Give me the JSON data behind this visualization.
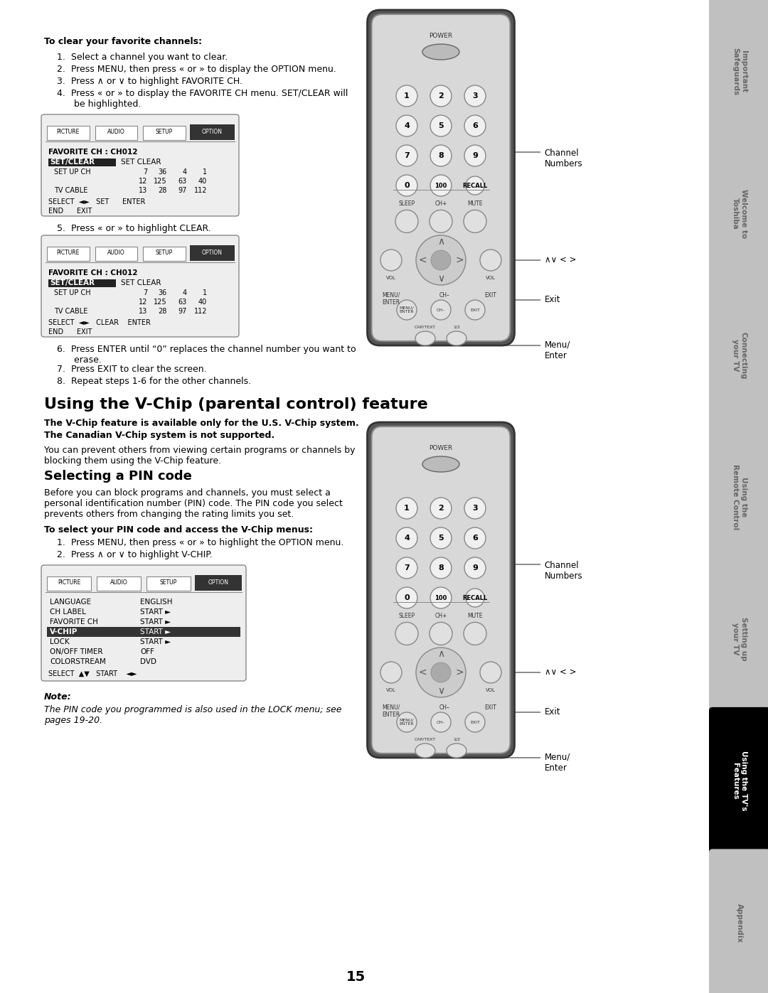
{
  "page_bg": "#ffffff",
  "page_number": "15",
  "tab_labels": [
    "Important\nSafeguards",
    "Welcome to\nToshiba",
    "Connecting\nyour TV",
    "Using the\nRemote Control",
    "Setting up\nyour TV",
    "Using the TV's\nFeatures",
    "Appendix"
  ],
  "tab_active_index": 5,
  "tab_bg_normal": "#c0c0c0",
  "tab_bg_active": "#000000",
  "tab_text_normal": "#666666",
  "tab_text_active": "#ffffff",
  "main_title": "Using the V-Chip (parental control) feature",
  "section_title": "Selecting a PIN code",
  "top_bold_title": "To clear your favorite channels:",
  "top_steps": [
    "Select a channel you want to clear.",
    "Press MENU, then press « or » to display the OPTION menu.",
    "Press ∧ or ∨ to highlight FAVORITE CH.",
    "Press « or » to display the FAVORITE CH menu. SET/CLEAR will\n      be highlighted."
  ],
  "step5": "5.  Press « or » to highlight CLEAR.",
  "steps_6_8": [
    "6.  Press ENTER until “0” replaces the channel number you want to\n      erase.",
    "7.  Press EXIT to clear the screen.",
    "8.  Repeat steps 1-6 for the other channels."
  ],
  "vchip_bold1": "The V-Chip feature is available only for the U.S. V-Chip system.",
  "vchip_bold2": "The Canadian V-Chip system is not supported.",
  "vchip_normal": "You can prevent others from viewing certain programs or channels by\nblocking them using the V-Chip feature.",
  "pin_para": "Before you can block programs and channels, you must select a\npersonal identification number (PIN) code. The PIN code you select\nprevents others from changing the rating limits you set.",
  "pin_bold_title": "To select your PIN code and access the V-Chip menus:",
  "pin_steps": [
    "1.  Press MENU, then press « or » to highlight the OPTION menu.",
    "2.  Press ∧ or ∨ to highlight V-CHIP."
  ],
  "note_bold": "Note:",
  "note_italic": "The PIN code you programmed is also used in the LOCK menu; see\npages 19-20.",
  "remote_label_ch": "Channel\nNumbers",
  "remote_label_av": "∧∨ < >",
  "remote_label_exit": "Exit",
  "remote_label_menu": "Menu/\nEnter"
}
